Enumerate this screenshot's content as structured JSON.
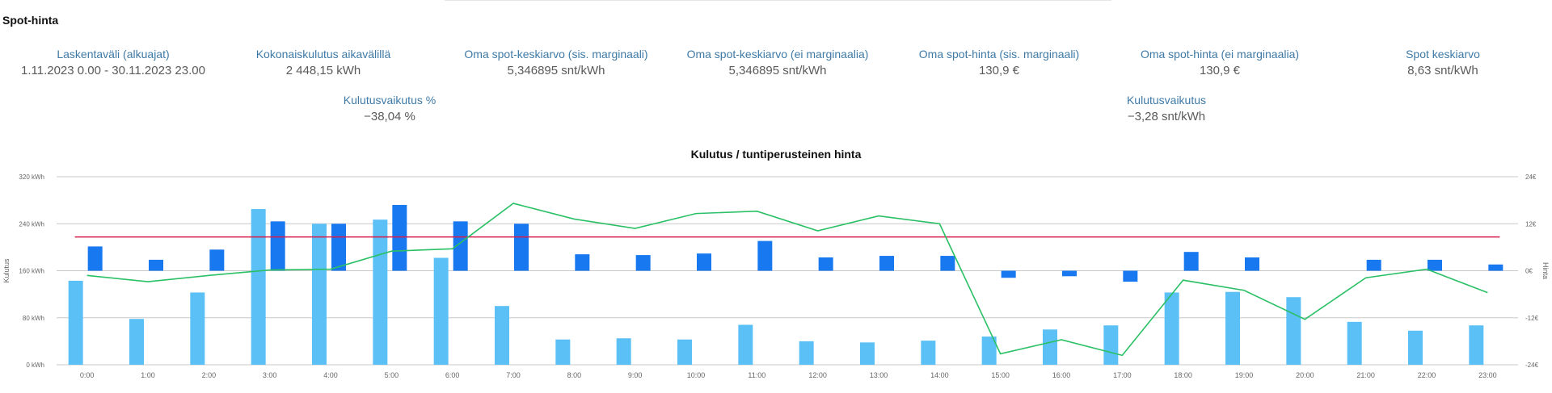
{
  "page_title": "Spot-hinta",
  "metrics": [
    {
      "label": "Laskentaväli (alkuajat)",
      "value": "1.11.2023 0.00 - 30.11.2023 23.00"
    },
    {
      "label": "Kokonaiskulutus aikavälillä",
      "value": "2 448,15 kWh"
    },
    {
      "label": "Oma spot-keskiarvo (sis. marginaali)",
      "value": "5,346895 snt/kWh"
    },
    {
      "label": "Oma spot-keskiarvo (ei marginaalia)",
      "value": "5,346895 snt/kWh"
    },
    {
      "label": "Oma spot-hinta (sis. marginaali)",
      "value": "130,9 €"
    },
    {
      "label": "Oma spot-hinta (ei marginaalia)",
      "value": "130,9 €"
    },
    {
      "label": "Spot keskiarvo",
      "value": "8,63 snt/kWh"
    },
    {
      "label": "Kulutusvaikutus %",
      "value": "−38,04 %"
    },
    {
      "label": "Kulutusvaikutus",
      "value": "−3,28 snt/kWh"
    }
  ],
  "colors": {
    "consumption_bar": "#5bc0f5",
    "price_bar": "#1878f0",
    "price_line": "#2ac065",
    "average_line": "#d81b4a",
    "grid": "#c8c8c8"
  },
  "chart_data": {
    "type": "bar",
    "title": "Kulutus / tuntiperusteinen hinta",
    "ylabel": "Kulutus",
    "y2label": "Hinta",
    "ylim": [
      0,
      320
    ],
    "y2lim": [
      -24,
      24
    ],
    "yticks": [
      "0 kWh",
      "80 kWh",
      "160 kWh",
      "240 kWh",
      "320 kWh"
    ],
    "y2ticks": [
      "-24€",
      "-12€",
      "0€",
      "12€",
      "24€"
    ],
    "grid": true,
    "categories": [
      "0:00",
      "1:00",
      "2:00",
      "3:00",
      "4:00",
      "5:00",
      "6:00",
      "7:00",
      "8:00",
      "9:00",
      "10:00",
      "11:00",
      "12:00",
      "13:00",
      "14:00",
      "15:00",
      "16:00",
      "17:00",
      "18:00",
      "19:00",
      "20:00",
      "21:00",
      "22:00",
      "23:00"
    ],
    "series": [
      {
        "kind": "bar",
        "axis": "left",
        "values": [
          143,
          78,
          123,
          265,
          240,
          247,
          182,
          100,
          43,
          45,
          43,
          68,
          40,
          38,
          41,
          48,
          60,
          67,
          123,
          124,
          115,
          73,
          58,
          67
        ]
      },
      {
        "kind": "bar",
        "axis": "right",
        "values": [
          6.2,
          2.8,
          5.4,
          12.6,
          12.0,
          16.8,
          12.6,
          12.0,
          4.2,
          4.0,
          4.4,
          7.6,
          3.4,
          3.8,
          3.8,
          -1.8,
          -1.4,
          -2.8,
          4.8,
          3.4,
          0,
          2.8,
          2.8,
          1.6
        ]
      },
      {
        "kind": "line",
        "axis": "right",
        "values": [
          -1.2,
          -2.8,
          -1.2,
          0.2,
          0.4,
          5.0,
          5.6,
          17.2,
          13.2,
          10.8,
          14.6,
          15.2,
          10.2,
          14.0,
          12.0,
          -21.2,
          -17.6,
          -21.6,
          -2.4,
          -5.0,
          -12.4,
          -1.8,
          0.4,
          -5.6
        ]
      },
      {
        "kind": "line",
        "axis": "right",
        "values": [
          8.63,
          8.63,
          8.63,
          8.63,
          8.63,
          8.63,
          8.63,
          8.63,
          8.63,
          8.63,
          8.63,
          8.63,
          8.63,
          8.63,
          8.63,
          8.63,
          8.63,
          8.63,
          8.63,
          8.63,
          8.63,
          8.63,
          8.63,
          8.63
        ]
      }
    ]
  }
}
